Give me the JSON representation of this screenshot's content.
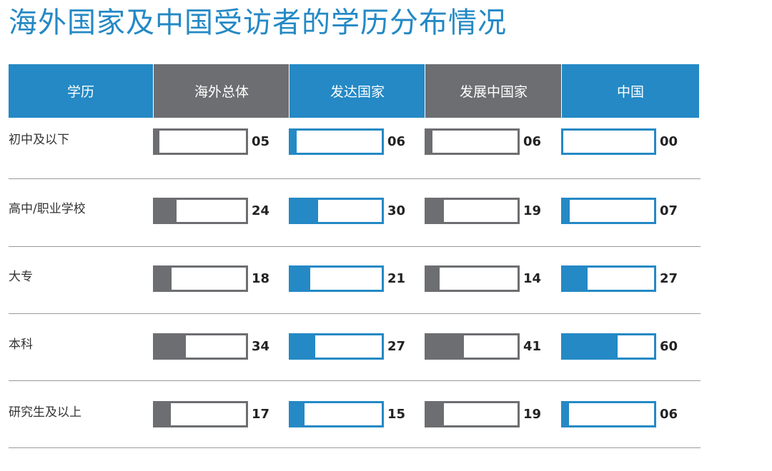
{
  "title": "海外国家及中国受访者的学历分布情况",
  "colors": {
    "gray": "#6d6e71",
    "blue": "#2489c5"
  },
  "chart_data": {
    "type": "table",
    "title": "海外国家及中国受访者的学历分布情况",
    "row_header": "学历",
    "columns": [
      {
        "name": "海外总体",
        "color": "#6d6e71"
      },
      {
        "name": "发达国家",
        "color": "#2489c5"
      },
      {
        "name": "发展中国家",
        "color": "#6d6e71"
      },
      {
        "name": "中国",
        "color": "#2489c5"
      }
    ],
    "rows": [
      {
        "label": "初中及以下",
        "values": [
          "05",
          "06",
          "06",
          "00"
        ]
      },
      {
        "label": "高中/职业学校",
        "values": [
          "24",
          "30",
          "19",
          "07"
        ]
      },
      {
        "label": "大专",
        "values": [
          "18",
          "21",
          "14",
          "27"
        ]
      },
      {
        "label": "本科",
        "values": [
          "34",
          "27",
          "41",
          "60"
        ]
      },
      {
        "label": "研究生及以上",
        "values": [
          "17",
          "15",
          "19",
          "06"
        ]
      }
    ],
    "scale_max": 100
  }
}
